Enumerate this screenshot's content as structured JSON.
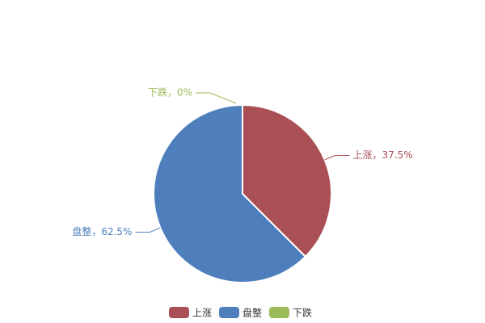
{
  "chart_data": {
    "type": "pie",
    "categories": [
      "上涨",
      "盘整",
      "下跌"
    ],
    "values": [
      37.5,
      62.5,
      0
    ],
    "value_labels": [
      "上涨，37.5%",
      "盘整，62.5%",
      "下跌，0%"
    ],
    "colors": [
      "#a94f55",
      "#4e7fbc",
      "#9bbb59"
    ],
    "legend": "bottom"
  }
}
